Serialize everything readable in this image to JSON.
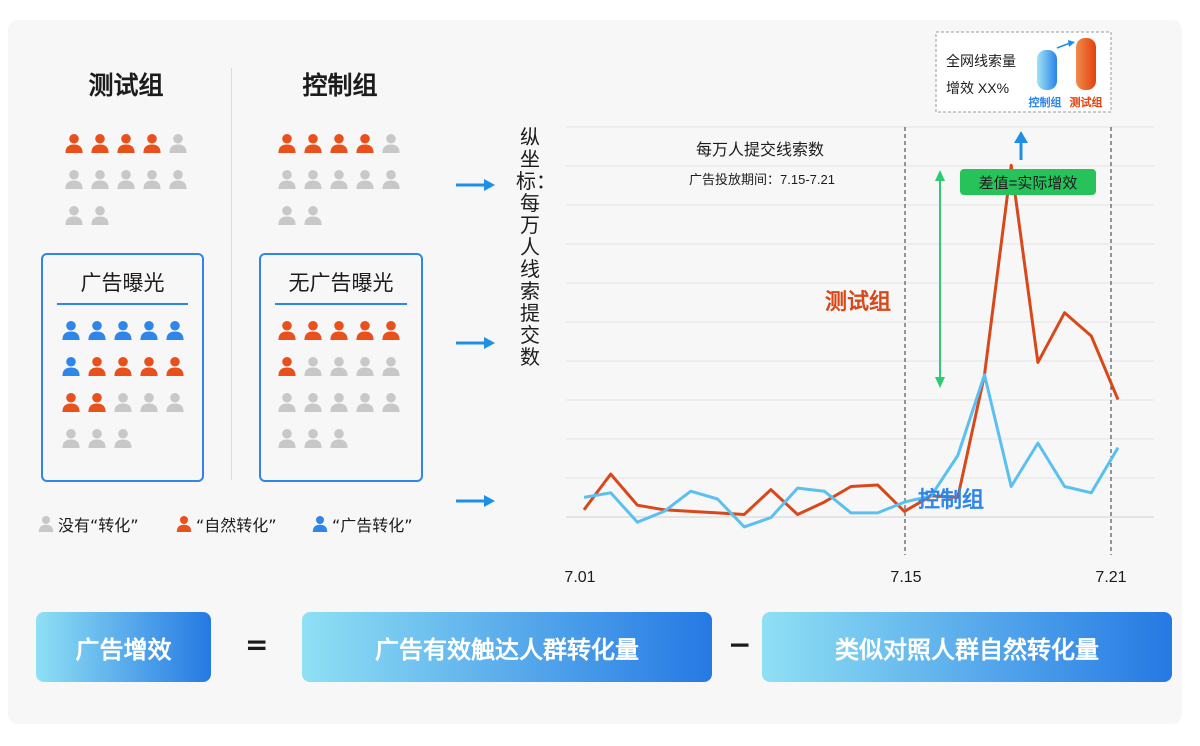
{
  "groups": {
    "test": {
      "title": "测试组",
      "top_rows": [
        [
          "orange",
          "orange",
          "orange",
          "orange",
          "gray"
        ],
        [
          "gray",
          "gray",
          "gray",
          "gray",
          "gray"
        ],
        [
          "gray",
          "gray"
        ]
      ],
      "box_title": "广告曝光",
      "box_rows": [
        [
          "blue",
          "blue",
          "blue",
          "blue",
          "blue"
        ],
        [
          "blue",
          "orange",
          "orange",
          "orange",
          "orange"
        ],
        [
          "orange",
          "orange",
          "gray",
          "gray",
          "gray"
        ],
        [
          "gray",
          "gray",
          "gray"
        ]
      ]
    },
    "control": {
      "title": "控制组",
      "top_rows": [
        [
          "orange",
          "orange",
          "orange",
          "orange",
          "gray"
        ],
        [
          "gray",
          "gray",
          "gray",
          "gray",
          "gray"
        ],
        [
          "gray",
          "gray"
        ]
      ],
      "box_title": "无广告曝光",
      "box_rows": [
        [
          "orange",
          "orange",
          "orange",
          "orange",
          "orange"
        ],
        [
          "orange",
          "gray",
          "gray",
          "gray",
          "gray"
        ],
        [
          "gray",
          "gray",
          "gray",
          "gray",
          "gray"
        ],
        [
          "gray",
          "gray",
          "gray"
        ]
      ]
    }
  },
  "legend": [
    {
      "color": "gray",
      "label": "没有“转化”"
    },
    {
      "color": "orange",
      "label": "“自然转化”"
    },
    {
      "color": "blue",
      "label": "“广告转化”"
    }
  ],
  "colors": {
    "orange": "#e8501c",
    "blue": "#2f86e8",
    "gray": "#c8c8c8",
    "test_line": "#d9481a",
    "control_line": "#5bc0f0",
    "green": "#2ecc71"
  },
  "y_axis_label": "纵坐标：每万人线索提交数",
  "chart_data": {
    "type": "line",
    "title": "每万人提交线索数",
    "subtitle": "广告投放期间：7.15-7.21",
    "x_tick_labels": [
      "7.01",
      "7.15",
      "7.21"
    ],
    "x": [
      "7.01",
      "7.02",
      "7.03",
      "7.04",
      "7.05",
      "7.06",
      "7.07",
      "7.08",
      "7.09",
      "7.10",
      "7.11",
      "7.12",
      "7.13",
      "7.14",
      "7.15",
      "7.16",
      "7.17",
      "7.18",
      "7.19",
      "7.20",
      "7.21"
    ],
    "series": [
      {
        "name": "测试组",
        "values": [
          13,
          36,
          16,
          13,
          12,
          11,
          10,
          26,
          10,
          18,
          28,
          29,
          12,
          22,
          21,
          100,
          235,
          108,
          140,
          125,
          84
        ]
      },
      {
        "name": "控制组",
        "values": [
          21,
          24,
          5,
          12,
          25,
          20,
          2,
          8,
          27,
          25,
          11,
          11,
          18,
          22,
          48,
          100,
          28,
          56,
          28,
          24,
          53
        ]
      }
    ],
    "series_visible": [
      21,
      21
    ],
    "ylim": [
      0,
      250
    ],
    "vlines": [
      "7.15",
      "7.21"
    ],
    "grid": true
  },
  "series_labels": {
    "test": "测试组",
    "control": "控制组"
  },
  "annotation": {
    "diff_label": "差值=实际增效",
    "inset_line1": "全网线索量",
    "inset_line2": "增效 XX%",
    "inset_control": "控制组",
    "inset_test": "测试组"
  },
  "formula": {
    "lhs": "广告增效",
    "eq": "=",
    "term1": "广告有效触达人群转化量",
    "minus": "−",
    "term2": "类似对照人群自然转化量"
  }
}
